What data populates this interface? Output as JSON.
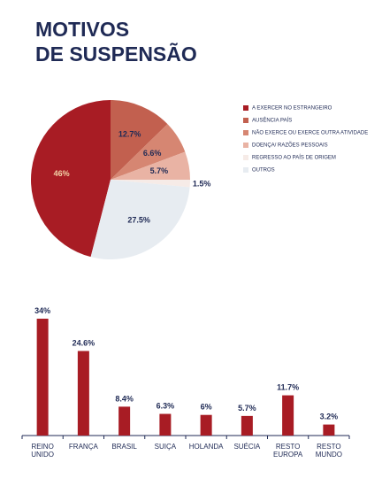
{
  "chart_data": [
    {
      "type": "pie",
      "title": [
        "MOTIVOS",
        "DE SUSPENSÃO"
      ],
      "labels": [
        "A EXERCER NO ESTRANGEIRO",
        "AUSÊNCIA PAÍS",
        "NÃO EXERCE OU EXERCE OUTRA ATIVIDADE",
        "DOENÇA/ RAZÕES PESSOAIS",
        "REGRESSO AO PAÍS DE ORIGEM",
        "OUTROS"
      ],
      "values": [
        46,
        12.7,
        6.6,
        5.7,
        1.5,
        27.5
      ],
      "value_labels": [
        "46%",
        "12.7%",
        "6.6%",
        "5.7%",
        "1.5%",
        "27.5%"
      ],
      "colors": [
        "#a81c24",
        "#c2604f",
        "#d68672",
        "#e9b3a4",
        "#f6ebe7",
        "#e7ecf1"
      ]
    },
    {
      "type": "bar",
      "categories": [
        "REINO UNIDO",
        "FRANÇA",
        "BRASIL",
        "SUIÇA",
        "HOLANDA",
        "SUÉCIA",
        "RESTO EUROPA",
        "RESTO MUNDO"
      ],
      "values": [
        34,
        24.6,
        8.4,
        6.3,
        6,
        5.7,
        11.7,
        3.2
      ],
      "value_labels": [
        "34%",
        "24.6%",
        "8.4%",
        "6.3%",
        "6%",
        "5.7%",
        "11.7%",
        "3.2%"
      ],
      "color": "#a81c24"
    }
  ]
}
